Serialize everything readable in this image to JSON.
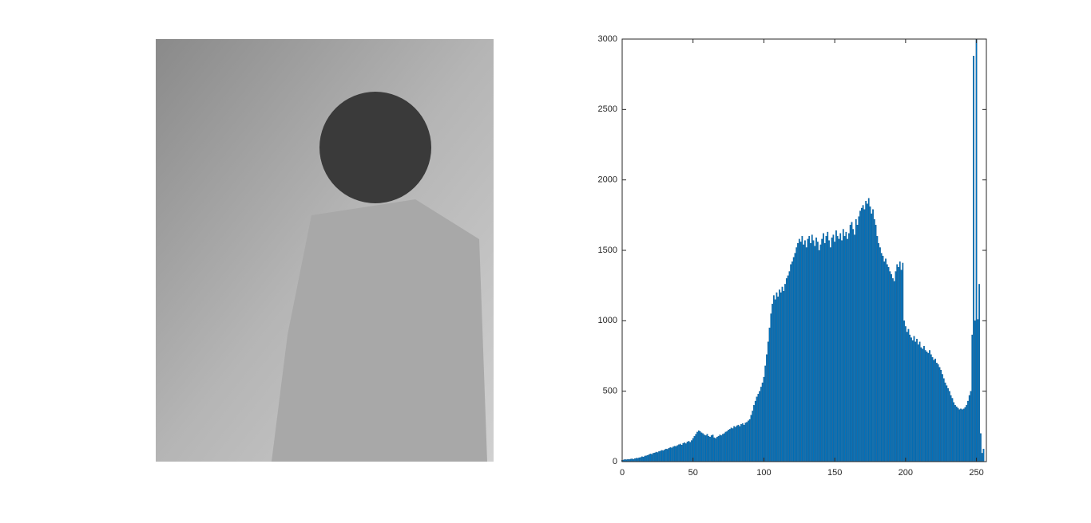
{
  "chart_data": {
    "type": "bar",
    "x": [
      0,
      1,
      2,
      3,
      4,
      5,
      6,
      7,
      8,
      9,
      10,
      11,
      12,
      13,
      14,
      15,
      16,
      17,
      18,
      19,
      20,
      21,
      22,
      23,
      24,
      25,
      26,
      27,
      28,
      29,
      30,
      31,
      32,
      33,
      34,
      35,
      36,
      37,
      38,
      39,
      40,
      41,
      42,
      43,
      44,
      45,
      46,
      47,
      48,
      49,
      50,
      51,
      52,
      53,
      54,
      55,
      56,
      57,
      58,
      59,
      60,
      61,
      62,
      63,
      64,
      65,
      66,
      67,
      68,
      69,
      70,
      71,
      72,
      73,
      74,
      75,
      76,
      77,
      78,
      79,
      80,
      81,
      82,
      83,
      84,
      85,
      86,
      87,
      88,
      89,
      90,
      91,
      92,
      93,
      94,
      95,
      96,
      97,
      98,
      99,
      100,
      101,
      102,
      103,
      104,
      105,
      106,
      107,
      108,
      109,
      110,
      111,
      112,
      113,
      114,
      115,
      116,
      117,
      118,
      119,
      120,
      121,
      122,
      123,
      124,
      125,
      126,
      127,
      128,
      129,
      130,
      131,
      132,
      133,
      134,
      135,
      136,
      137,
      138,
      139,
      140,
      141,
      142,
      143,
      144,
      145,
      146,
      147,
      148,
      149,
      150,
      151,
      152,
      153,
      154,
      155,
      156,
      157,
      158,
      159,
      160,
      161,
      162,
      163,
      164,
      165,
      166,
      167,
      168,
      169,
      170,
      171,
      172,
      173,
      174,
      175,
      176,
      177,
      178,
      179,
      180,
      181,
      182,
      183,
      184,
      185,
      186,
      187,
      188,
      189,
      190,
      191,
      192,
      193,
      194,
      195,
      196,
      197,
      198,
      199,
      200,
      201,
      202,
      203,
      204,
      205,
      206,
      207,
      208,
      209,
      210,
      211,
      212,
      213,
      214,
      215,
      216,
      217,
      218,
      219,
      220,
      221,
      222,
      223,
      224,
      225,
      226,
      227,
      228,
      229,
      230,
      231,
      232,
      233,
      234,
      235,
      236,
      237,
      238,
      239,
      240,
      241,
      242,
      243,
      244,
      245,
      246,
      247,
      248,
      249,
      250,
      251,
      252,
      253,
      254,
      255
    ],
    "values": [
      10,
      12,
      15,
      14,
      16,
      15,
      18,
      20,
      17,
      22,
      25,
      24,
      28,
      30,
      35,
      33,
      40,
      42,
      45,
      50,
      55,
      52,
      60,
      62,
      68,
      65,
      72,
      75,
      80,
      78,
      85,
      90,
      88,
      95,
      100,
      98,
      105,
      110,
      108,
      115,
      120,
      125,
      118,
      130,
      135,
      128,
      140,
      145,
      138,
      150,
      165,
      180,
      195,
      210,
      220,
      215,
      205,
      200,
      190,
      185,
      195,
      180,
      175,
      185,
      190,
      170,
      165,
      175,
      180,
      190,
      185,
      195,
      200,
      210,
      215,
      225,
      230,
      240,
      235,
      250,
      245,
      255,
      260,
      250,
      265,
      270,
      260,
      275,
      280,
      290,
      300,
      330,
      360,
      400,
      430,
      460,
      480,
      500,
      530,
      560,
      600,
      680,
      760,
      850,
      950,
      1050,
      1120,
      1180,
      1150,
      1200,
      1170,
      1220,
      1200,
      1240,
      1210,
      1260,
      1300,
      1320,
      1350,
      1400,
      1420,
      1450,
      1480,
      1520,
      1550,
      1580,
      1560,
      1600,
      1540,
      1570,
      1520,
      1580,
      1600,
      1550,
      1610,
      1570,
      1530,
      1590,
      1560,
      1500,
      1540,
      1580,
      1620,
      1550,
      1600,
      1630,
      1570,
      1520,
      1590,
      1610,
      1560,
      1640,
      1600,
      1580,
      1620,
      1570,
      1650,
      1600,
      1630,
      1580,
      1620,
      1680,
      1700,
      1650,
      1610,
      1720,
      1680,
      1740,
      1780,
      1800,
      1820,
      1790,
      1850,
      1830,
      1870,
      1810,
      1760,
      1790,
      1720,
      1680,
      1600,
      1550,
      1520,
      1480,
      1460,
      1420,
      1440,
      1400,
      1380,
      1350,
      1330,
      1300,
      1280,
      1350,
      1400,
      1380,
      1420,
      1360,
      1410,
      1000,
      960,
      920,
      940,
      900,
      880,
      860,
      890,
      850,
      870,
      830,
      850,
      810,
      800,
      820,
      790,
      780,
      770,
      790,
      760,
      740,
      720,
      730,
      700,
      690,
      670,
      650,
      620,
      590,
      560,
      540,
      520,
      500,
      470,
      450,
      420,
      400,
      390,
      380,
      370,
      375,
      370,
      375,
      385,
      400,
      430,
      470,
      500,
      900,
      2880,
      1000,
      3000,
      1010,
      1260,
      200,
      60,
      90
    ],
    "color": "#0072bd",
    "xlim": [
      0,
      257
    ],
    "xticks": [
      0,
      50,
      100,
      150,
      200,
      250
    ],
    "ylim": [
      0,
      3000
    ],
    "yticks": [
      0,
      500,
      1000,
      1500,
      2000,
      2500,
      3000
    ]
  }
}
